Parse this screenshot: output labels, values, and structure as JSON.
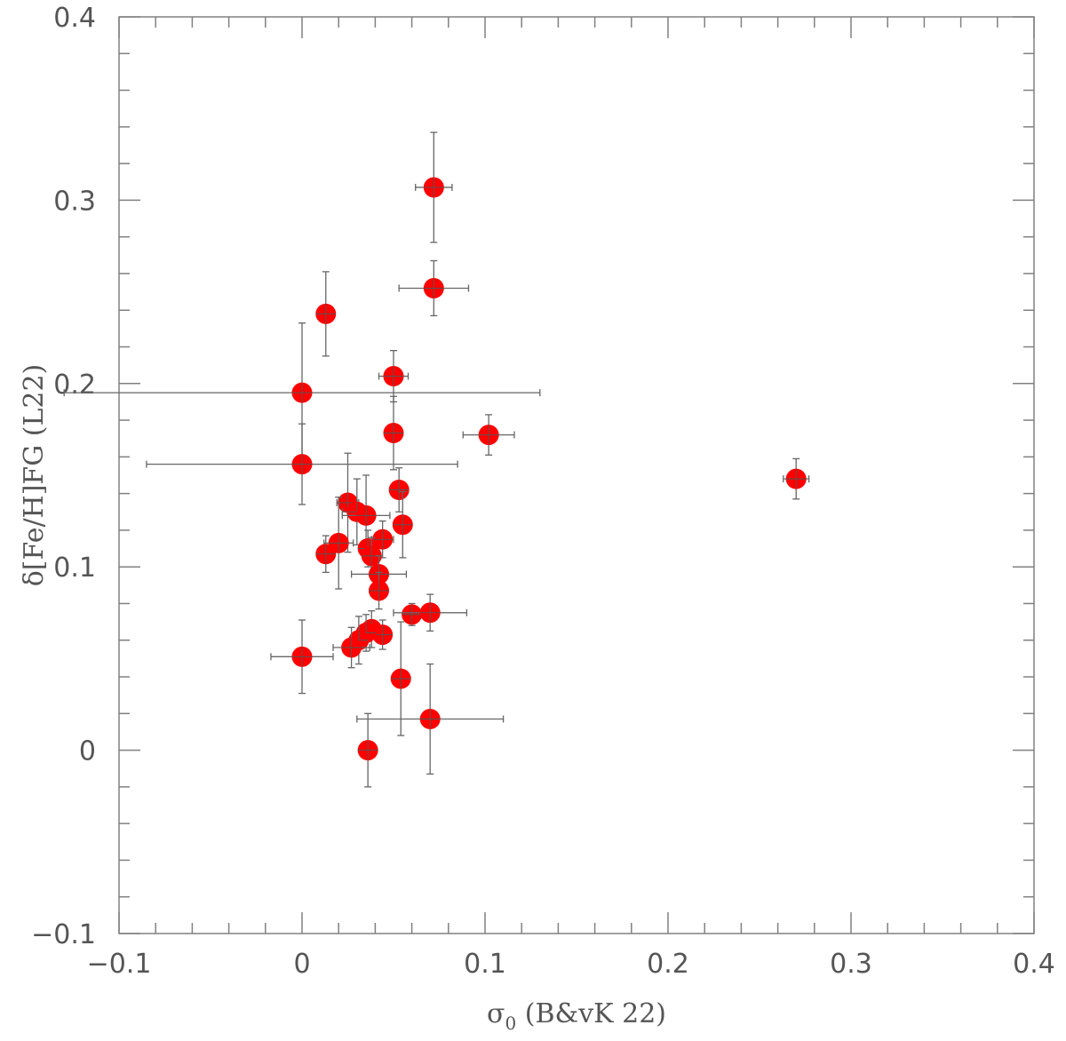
{
  "chart_data": {
    "type": "scatter",
    "title": "",
    "xlabel": "σ",
    "xlabel_sub": "0",
    "xlabel_rest": " (B&vK 22)",
    "ylabel": "δ[Fe/H]FG (L22)",
    "xlim": [
      -0.1,
      0.4
    ],
    "ylim": [
      -0.1,
      0.4
    ],
    "xticks": [
      -0.1,
      0,
      0.1,
      0.2,
      0.3,
      0.4
    ],
    "xtick_labels": [
      "−0.1",
      "0",
      "0.1",
      "0.2",
      "0.3",
      "0.4"
    ],
    "yticks": [
      -0.1,
      0,
      0.1,
      0.2,
      0.3,
      0.4
    ],
    "ytick_labels": [
      "−0.1",
      "0",
      "0.1",
      "0.2",
      "0.3",
      "0.4"
    ],
    "minor_step": 0.02,
    "grid": false,
    "marker_color": "#ff0000",
    "errorbar_color": "#666666",
    "points": [
      {
        "x": 0.072,
        "y": 0.307,
        "xerr": 0.01,
        "yerr": 0.03
      },
      {
        "x": 0.072,
        "y": 0.252,
        "xerr": 0.019,
        "yerr": 0.015
      },
      {
        "x": 0.013,
        "y": 0.238,
        "xerr": 0.004,
        "yerr": 0.023
      },
      {
        "x": 0.05,
        "y": 0.204,
        "xerr": 0.008,
        "yerr": 0.014
      },
      {
        "x": 0.0,
        "y": 0.195,
        "xerr": 0.13,
        "yerr": 0.038
      },
      {
        "x": 0.05,
        "y": 0.173,
        "xerr": 0.004,
        "yerr": 0.02
      },
      {
        "x": 0.102,
        "y": 0.172,
        "xerr": 0.014,
        "yerr": 0.011
      },
      {
        "x": 0.0,
        "y": 0.156,
        "xerr": 0.085,
        "yerr": 0.022
      },
      {
        "x": 0.27,
        "y": 0.148,
        "xerr": 0.007,
        "yerr": 0.011
      },
      {
        "x": 0.053,
        "y": 0.142,
        "xerr": 0.003,
        "yerr": 0.012
      },
      {
        "x": 0.025,
        "y": 0.135,
        "xerr": 0.006,
        "yerr": 0.027
      },
      {
        "x": 0.03,
        "y": 0.13,
        "xerr": 0.008,
        "yerr": 0.018
      },
      {
        "x": 0.035,
        "y": 0.128,
        "xerr": 0.013,
        "yerr": 0.022
      },
      {
        "x": 0.055,
        "y": 0.123,
        "xerr": 0.003,
        "yerr": 0.018
      },
      {
        "x": 0.044,
        "y": 0.115,
        "xerr": 0.006,
        "yerr": 0.01
      },
      {
        "x": 0.02,
        "y": 0.113,
        "xerr": 0.008,
        "yerr": 0.025
      },
      {
        "x": 0.036,
        "y": 0.11,
        "xerr": 0.004,
        "yerr": 0.01
      },
      {
        "x": 0.013,
        "y": 0.107,
        "xerr": 0.003,
        "yerr": 0.01
      },
      {
        "x": 0.038,
        "y": 0.106,
        "xerr": 0.005,
        "yerr": 0.01
      },
      {
        "x": 0.042,
        "y": 0.096,
        "xerr": 0.015,
        "yerr": 0.01
      },
      {
        "x": 0.042,
        "y": 0.087,
        "xerr": 0.003,
        "yerr": 0.01
      },
      {
        "x": 0.06,
        "y": 0.074,
        "xerr": 0.005,
        "yerr": 0.006
      },
      {
        "x": 0.07,
        "y": 0.075,
        "xerr": 0.02,
        "yerr": 0.01
      },
      {
        "x": 0.038,
        "y": 0.066,
        "xerr": 0.004,
        "yerr": 0.01
      },
      {
        "x": 0.044,
        "y": 0.063,
        "xerr": 0.003,
        "yerr": 0.008
      },
      {
        "x": 0.035,
        "y": 0.064,
        "xerr": 0.003,
        "yerr": 0.01
      },
      {
        "x": 0.031,
        "y": 0.06,
        "xerr": 0.003,
        "yerr": 0.013
      },
      {
        "x": 0.027,
        "y": 0.056,
        "xerr": 0.01,
        "yerr": 0.011
      },
      {
        "x": 0.0,
        "y": 0.051,
        "xerr": 0.017,
        "yerr": 0.02
      },
      {
        "x": 0.054,
        "y": 0.039,
        "xerr": 0.002,
        "yerr": 0.031
      },
      {
        "x": 0.07,
        "y": 0.017,
        "xerr": 0.04,
        "yerr": 0.03
      },
      {
        "x": 0.036,
        "y": 0.0,
        "xerr": 0.004,
        "yerr": 0.02
      }
    ]
  }
}
